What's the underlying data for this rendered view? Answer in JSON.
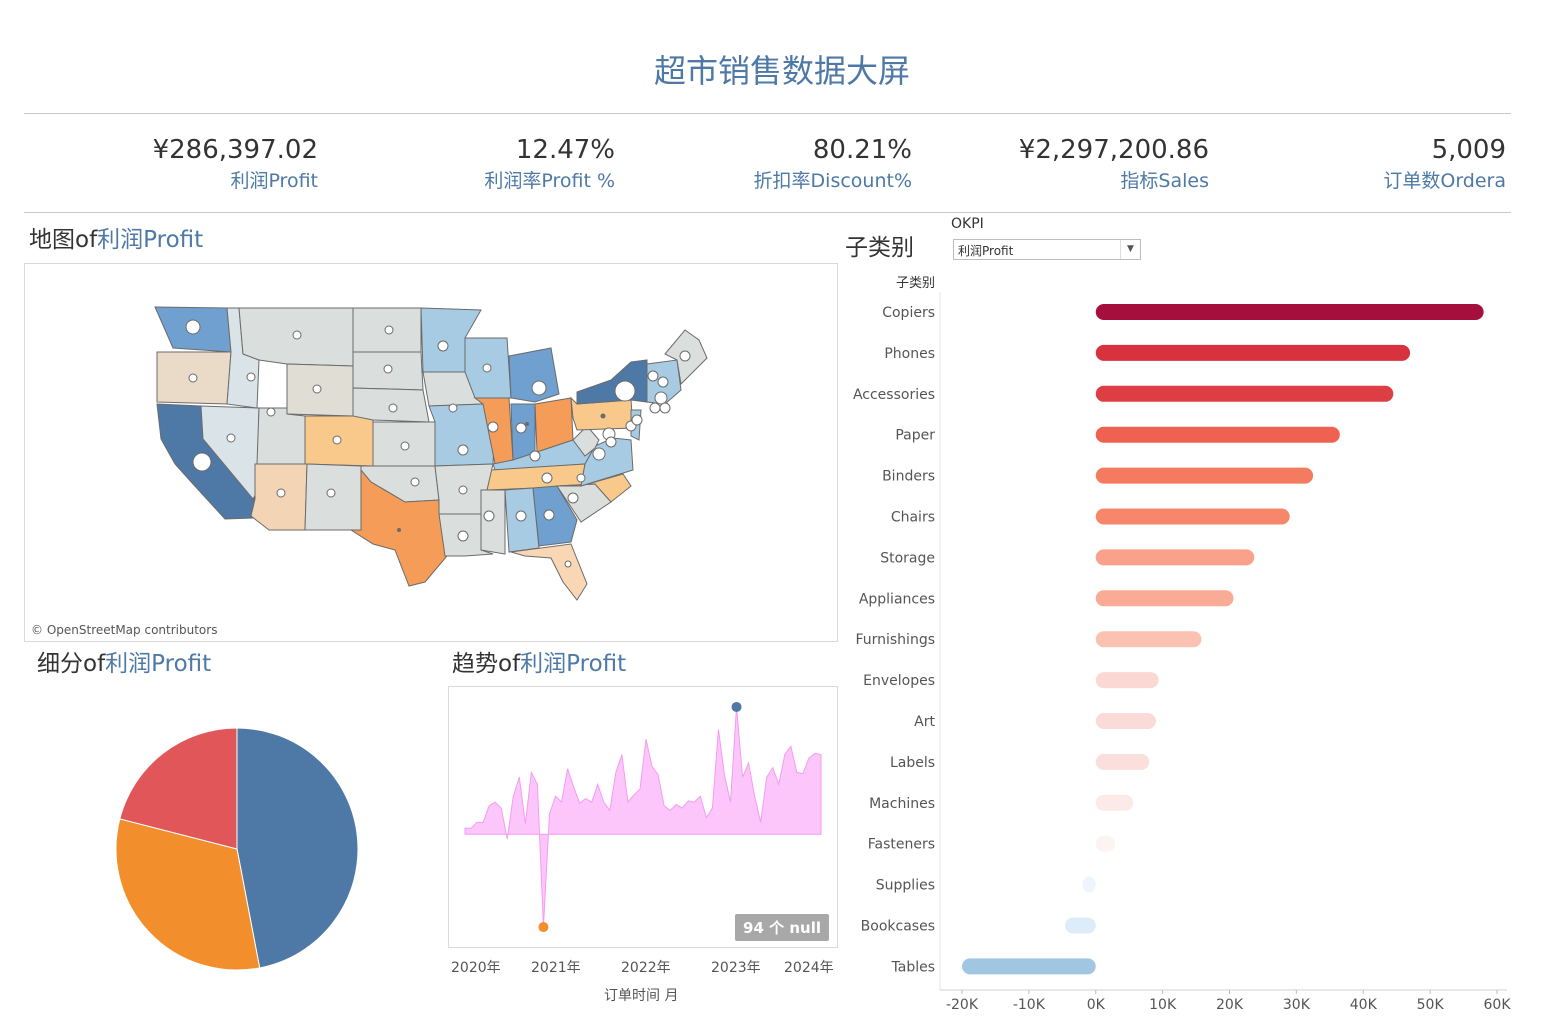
{
  "page": {
    "title": "超市销售数据大屏"
  },
  "kpis": [
    {
      "value": "¥286,397.02",
      "label": "利润Profit"
    },
    {
      "value": "12.47%",
      "label": "利润率Profit %"
    },
    {
      "value": "80.21%",
      "label": "折扣率Discount%"
    },
    {
      "value": "¥2,297,200.86",
      "label": "指标Sales"
    },
    {
      "value": "5,009",
      "label": "订单数Ordera"
    }
  ],
  "map": {
    "title_prefix": "地图of",
    "title_measure": "利润Profit",
    "credit": "© OpenStreetMap contributors"
  },
  "segment": {
    "title_prefix": "细分of",
    "title_measure": "利润Profit"
  },
  "trend": {
    "title_prefix": "趋势of",
    "title_measure": "利润Profit",
    "null_badge": "94 个 null",
    "x_ticks": [
      "2020年",
      "2021年",
      "2022年",
      "2023年",
      "2024年"
    ],
    "x_axis_title": "订单时间 月"
  },
  "subcategory": {
    "title": "子类别",
    "filter_label": "OKPI",
    "filter_value": "利润Profit",
    "header": "子类别"
  },
  "chart_data": [
    {
      "type": "bar",
      "orientation": "horizontal",
      "categories": [
        "Copiers",
        "Phones",
        "Accessories",
        "Paper",
        "Binders",
        "Chairs",
        "Storage",
        "Appliances",
        "Furnishings",
        "Envelopes",
        "Art",
        "Labels",
        "Machines",
        "Fasteners",
        "Supplies",
        "Bookcases",
        "Tables"
      ],
      "values": [
        58000,
        47000,
        44500,
        36500,
        32500,
        29000,
        23700,
        20600,
        15800,
        9400,
        9000,
        8000,
        5600,
        2900,
        -2000,
        -4600,
        -20000
      ],
      "colors": [
        "#a50f3e",
        "#d9323f",
        "#dd3e44",
        "#ef6150",
        "#f47b60",
        "#f6876a",
        "#f9a18a",
        "#f9ab95",
        "#fbc1b1",
        "#fbd8d3",
        "#fbdbd8",
        "#fbdfdd",
        "#fbeae8",
        "#fcf4f3",
        "#eef5fb",
        "#dcecf8",
        "#a0c6e2"
      ],
      "xlim": [
        -20000,
        60000
      ],
      "x_ticks": [
        "-20K",
        "-10K",
        "0K",
        "10K",
        "20K",
        "30K",
        "40K",
        "50K",
        "60K"
      ],
      "x_tick_values": [
        -20000,
        -10000,
        0,
        10000,
        20000,
        30000,
        40000,
        50000,
        60000
      ]
    },
    {
      "type": "pie",
      "slices": [
        {
          "value": 0.47,
          "color": "#4e79a7"
        },
        {
          "value": 0.32,
          "color": "#f28e2b"
        },
        {
          "value": 0.21,
          "color": "#e15759"
        }
      ]
    },
    {
      "type": "area",
      "x_range": [
        0,
        60
      ],
      "values": [
        -700,
        -700,
        -200,
        -200,
        1200,
        1500,
        1000,
        -1600,
        2000,
        3600,
        -300,
        4000,
        3000,
        -9000,
        500,
        2000,
        1500,
        4300,
        2800,
        1400,
        1800,
        1500,
        3000,
        1500,
        800,
        4000,
        5500,
        1500,
        2100,
        2600,
        6800,
        4500,
        3800,
        1200,
        800,
        1300,
        1000,
        1600,
        1500,
        2000,
        200,
        1000,
        7600,
        3800,
        1500,
        9500,
        3600,
        4800,
        2000,
        -200,
        3600,
        4400,
        3000,
        5500,
        6200,
        4000,
        3900,
        5200,
        5600,
        5500
      ],
      "max_point": {
        "index": 45,
        "color": "#4e79a7"
      },
      "min_point": {
        "index": 13,
        "color": "#f28e2b"
      },
      "fill": "#fdc6fb",
      "stroke": "#f39cf1"
    }
  ]
}
